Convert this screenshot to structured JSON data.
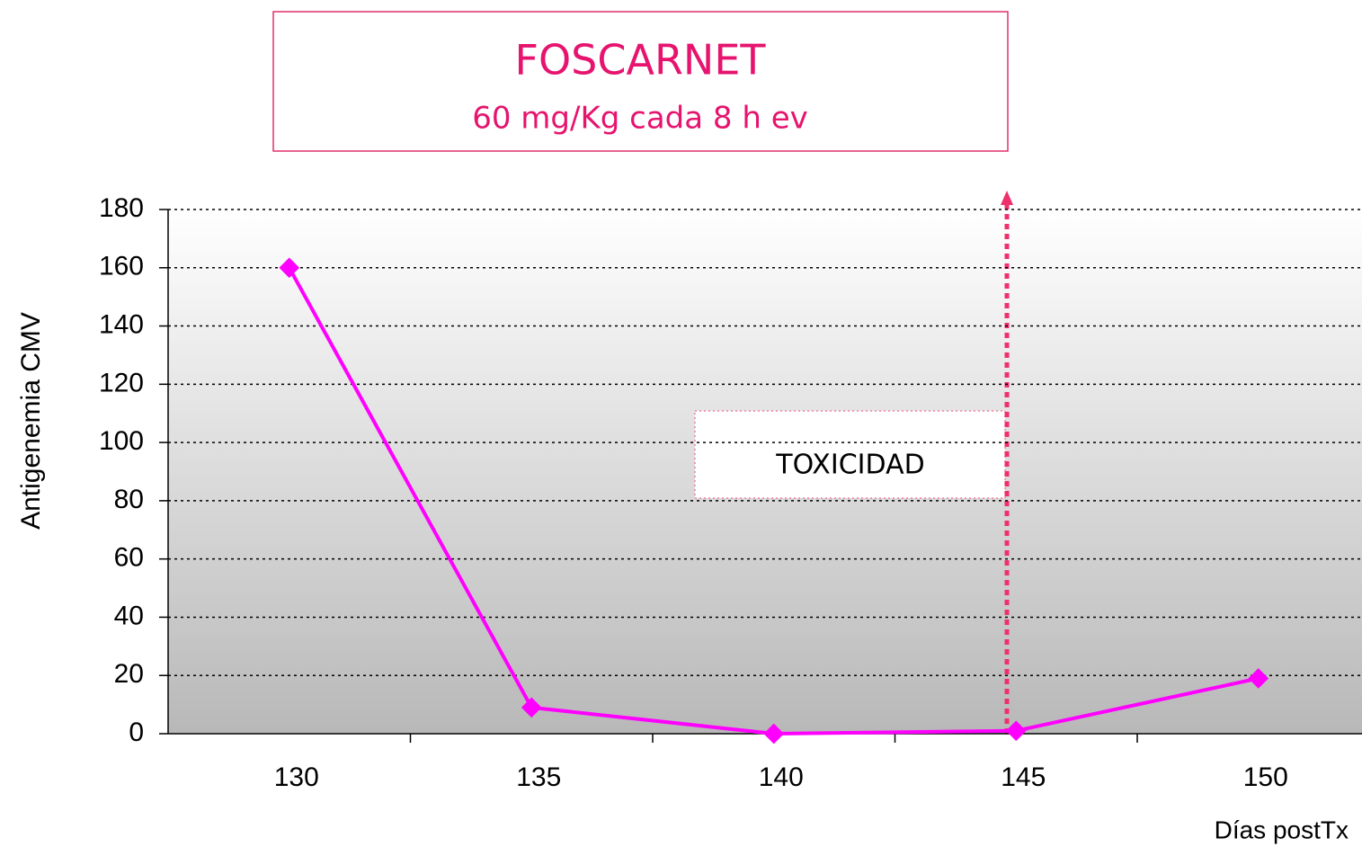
{
  "chart_data": {
    "type": "line",
    "title": "FOSCARNET",
    "subtitle": "60 mg/Kg  cada 8 h ev",
    "annotation": "TOXICIDAD",
    "y_label": "Antigenemia CMV",
    "x_label": "Días postTx",
    "categories": [
      "130",
      "135",
      "140",
      "145",
      "150"
    ],
    "series": [
      {
        "name": "Antigenemia CMV",
        "color": "#ff00ff",
        "values": [
          160,
          9,
          0,
          1,
          19
        ]
      }
    ],
    "ylim": [
      0,
      180
    ],
    "yticks": [
      0,
      20,
      40,
      60,
      80,
      100,
      120,
      140,
      160,
      180
    ],
    "grid": true
  }
}
